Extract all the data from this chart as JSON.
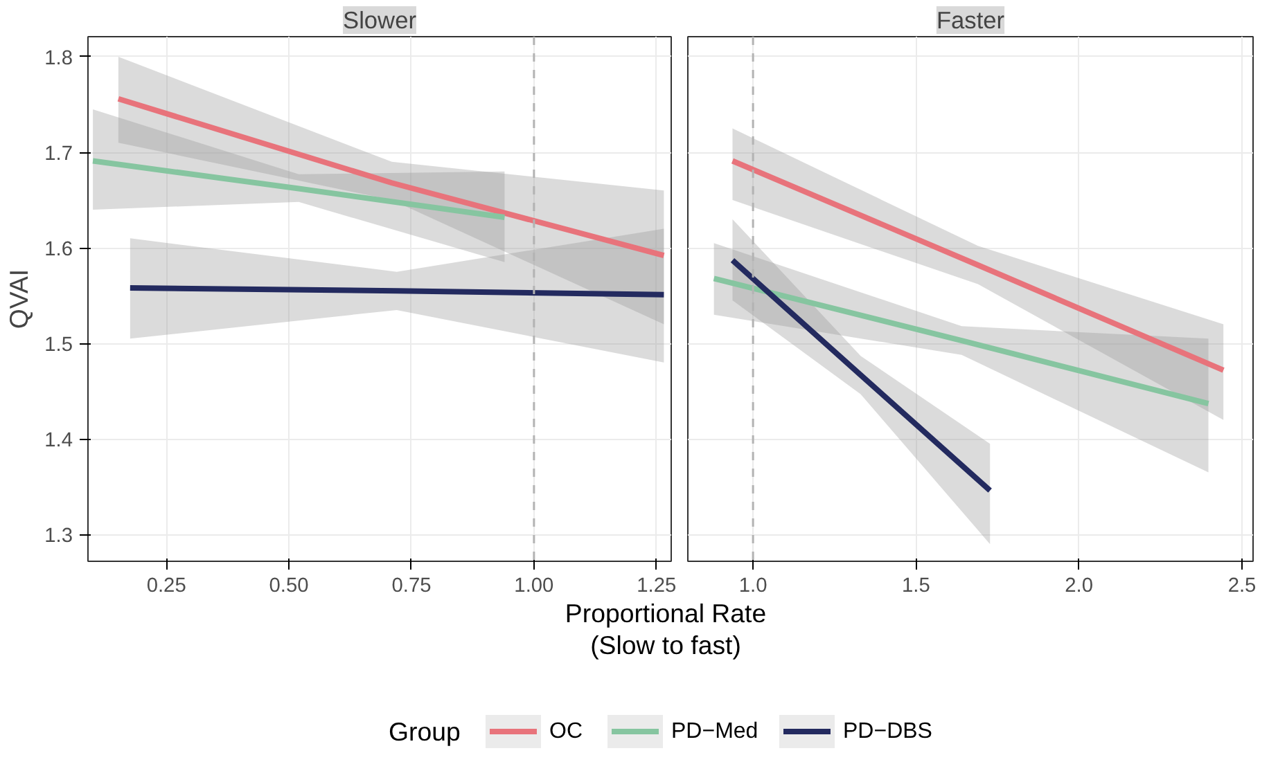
{
  "chart_data": [
    {
      "type": "line",
      "title": "Slower",
      "xlabel": "Proportional Rate\n(Slow to fast)",
      "ylabel": "QVAI",
      "legend": "bottom",
      "legend_title": "Group",
      "grid": true,
      "line_style": "solid",
      "marker": "none",
      "xlim": [
        0.09,
        1.28
      ],
      "xticks": [
        {
          "value": 0.25,
          "label": "0.25"
        },
        {
          "value": 0.5,
          "label": "0.50"
        },
        {
          "value": 0.75,
          "label": "0.75"
        },
        {
          "value": 1.0,
          "label": "1.00"
        },
        {
          "value": 1.25,
          "label": "1.25"
        }
      ],
      "ylim": [
        1.272,
        1.821
      ],
      "yticks": [
        1.3,
        1.4,
        1.5,
        1.6,
        1.7,
        1.8
      ],
      "tick_labels": "xy",
      "ref_lines": [
        {
          "axis": "x",
          "value": 1.0,
          "color": "#b3b3b3",
          "line_style": "dashed"
        }
      ],
      "series": [
        {
          "name": "OC",
          "color": "#e8737b",
          "x": [
            0.152,
            0.71,
            1.265
          ],
          "values": [
            1.756,
            1.668,
            1.592
          ],
          "lower": [
            1.71,
            1.65,
            1.52
          ],
          "upper": [
            1.8,
            1.69,
            1.66
          ]
        },
        {
          "name": "PD−Med",
          "color": "#86c5a0",
          "x": [
            0.1,
            0.52,
            0.94
          ],
          "values": [
            1.691,
            1.662,
            1.632
          ],
          "lower": [
            1.64,
            1.648,
            1.585
          ],
          "upper": [
            1.745,
            1.677,
            1.68
          ]
        },
        {
          "name": "PD−DBS",
          "color": "#232a5f",
          "x": [
            0.176,
            0.72,
            1.265
          ],
          "values": [
            1.558,
            1.555,
            1.551
          ],
          "lower": [
            1.505,
            1.535,
            1.48
          ],
          "upper": [
            1.61,
            1.575,
            1.62
          ]
        }
      ]
    },
    {
      "type": "line",
      "title": "Faster",
      "grid": true,
      "line_style": "solid",
      "marker": "none",
      "tick_labels": "x",
      "xlim": [
        0.8,
        2.534
      ],
      "xticks": [
        {
          "value": 1.0,
          "label": "1.0"
        },
        1.5,
        {
          "value": 2.0,
          "label": "2.0"
        },
        2.5
      ],
      "ylim": [
        1.272,
        1.821
      ],
      "yticks": [
        1.3,
        1.4,
        1.5,
        1.6,
        1.7,
        1.8
      ],
      "ref_lines": [
        {
          "axis": "x",
          "value": 1.0,
          "color": "#b3b3b3",
          "line_style": "dashed"
        }
      ],
      "series": [
        {
          "color": "#e8737b",
          "x": [
            0.937,
            1.69,
            2.443
          ],
          "values": [
            1.691,
            1.582,
            1.472
          ],
          "lower": [
            1.65,
            1.562,
            1.42
          ],
          "upper": [
            1.725,
            1.602,
            1.52
          ]
        },
        {
          "color": "#86c5a0",
          "x": [
            0.88,
            1.64,
            2.397
          ],
          "values": [
            1.568,
            1.503,
            1.437
          ],
          "lower": [
            1.53,
            1.488,
            1.365
          ],
          "upper": [
            1.605,
            1.518,
            1.505
          ]
        },
        {
          "color": "#232a5f",
          "x": [
            0.937,
            1.33,
            1.727
          ],
          "values": [
            1.587,
            1.467,
            1.346
          ],
          "lower": [
            1.545,
            1.447,
            1.29
          ],
          "upper": [
            1.63,
            1.487,
            1.395
          ]
        }
      ]
    }
  ]
}
